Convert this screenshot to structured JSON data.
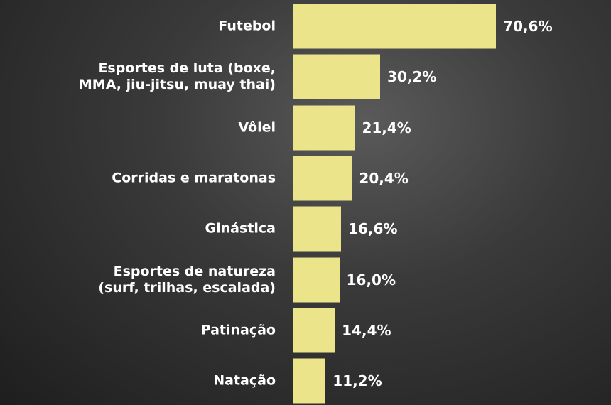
{
  "chart_data": {
    "type": "bar",
    "orientation": "horizontal",
    "categories": [
      "Futebol",
      "Esportes de luta (boxe,\nMMA, jiu-jitsu, muay thai)",
      "Vôlei",
      "Corridas e maratonas",
      "Ginástica",
      "Esportes de natureza\n(surf, trilhas, escalada)",
      "Patinação",
      "Natação"
    ],
    "values": [
      70.6,
      30.2,
      21.4,
      20.4,
      16.6,
      16.0,
      14.4,
      11.2
    ],
    "value_labels": [
      "70,6%",
      "30,2%",
      "21,4%",
      "20,4%",
      "16,6%",
      "16,0%",
      "14,4%",
      "11,2%"
    ],
    "color": "#ece48b"
  }
}
